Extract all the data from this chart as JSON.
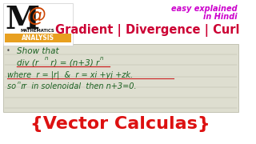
{
  "bg_color": "#ffffff",
  "notebook_bg": "#e0e0d0",
  "logo_text1": "MATHEMATICS",
  "logo_text2": "ANALYSIS",
  "logo_bar_color": "#e8a020",
  "top_right_text1": "easy explained",
  "top_right_text2": "in Hindi",
  "top_right_color": "#cc00cc",
  "title_text": "Gradient | Divergence | Curl",
  "title_color": "#cc0033",
  "handwriting_color": "#1a6020",
  "line1": "Show that",
  "line2a": "div (r",
  "line2b": "n",
  "line2c": " r) = (n+3) r",
  "line2d": "n",
  "line3": "where  r = |r|  &  r = xi +yj +zk.",
  "line4": "so  r",
  "line4b": "n",
  "line4c": ".r  in solenoidal  then n+3=0.",
  "bottom_text": "{Vector Calculas}",
  "bottom_color": "#dd1111"
}
